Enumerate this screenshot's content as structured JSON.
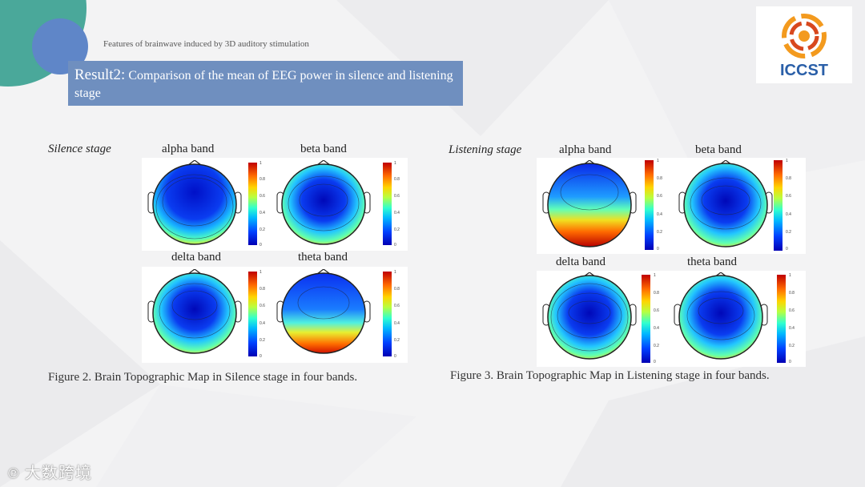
{
  "header": {
    "subtitle": "Features of brainwave induced by 3D auditory stimulation",
    "result_lead": "Result2:",
    "result_text": " Comparison of the mean of EEG power in silence and listening stage"
  },
  "logo": {
    "text": "ICCST",
    "colors": [
      "#f39a1e",
      "#d8481e",
      "#2a5fa8"
    ]
  },
  "silence": {
    "stage_label": "Silence stage",
    "bands": [
      "alpha band",
      "beta band",
      "delta band",
      "theta band"
    ],
    "caption": "Figure 2. Brain Topographic Map in Silence stage in four bands."
  },
  "listening": {
    "stage_label": "Listening stage",
    "bands": [
      "alpha band",
      "beta band",
      "delta band",
      "theta band"
    ],
    "caption": "Figure 3. Brain Topographic Map in Listening stage in four bands."
  },
  "colorbar_ticks": [
    "1",
    "0.8",
    "0.6",
    "0.4",
    "0.2",
    "0"
  ],
  "watermark": "大数跨境",
  "colors": {
    "accent_box": "#6f8fbf",
    "teal": "#4aa89a",
    "blue_circle": "#5f86c8"
  }
}
